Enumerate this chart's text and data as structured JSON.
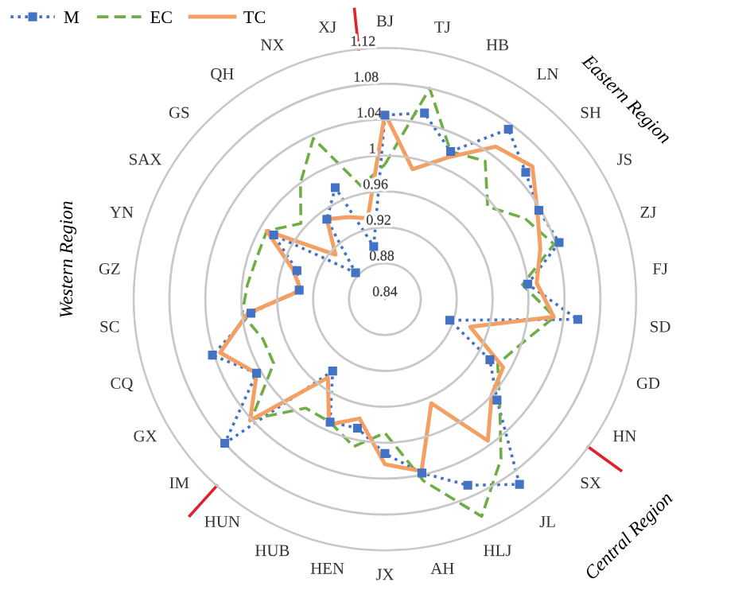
{
  "chart_data": {
    "type": "radar",
    "categories": [
      "BJ",
      "TJ",
      "HB",
      "LN",
      "SH",
      "JS",
      "ZJ",
      "FJ",
      "SD",
      "GD",
      "HN",
      "SX",
      "JL",
      "HLJ",
      "AH",
      "JX",
      "HEN",
      "HUB",
      "HUN",
      "IM",
      "GX",
      "CQ",
      "SC",
      "GZ",
      "YN",
      "SAX",
      "GS",
      "QH",
      "NX",
      "XJ"
    ],
    "series": [
      {
        "name": "M",
        "color": "#4472c4",
        "marker": "square",
        "line_style": "dotted",
        "values": [
          1.045,
          1.052,
          1.02,
          1.074,
          1.051,
          1.038,
          1.044,
          1.0,
          1.056,
          0.916,
          0.975,
          1.008,
          1.095,
          1.067,
          1.038,
          1.012,
          0.987,
          0.99,
          0.939,
          1.08,
          1.005,
          1.042,
          0.99,
          0.936,
          0.943,
          0.983,
          0.884,
          0.95,
          0.976,
          0.9
        ]
      },
      {
        "name": "EC",
        "color": "#70ad47",
        "marker": "none",
        "line_style": "dashed",
        "values": [
          0.99,
          1.08,
          1.02,
          1.03,
          0.994,
          1.02,
          1.038,
          0.994,
          1.03,
          1.0,
          0.985,
          1.012,
          1.06,
          1.105,
          1.047,
          0.989,
          1.008,
          0.99,
          0.99,
          1.04,
          0.983,
          0.983,
          1.0,
          0.994,
          0.99,
          0.992,
          0.966,
          1.0,
          1.036,
          0.969
        ]
      },
      {
        "name": "TC",
        "color": "#f4a064",
        "marker": "none",
        "line_style": "solid",
        "values": [
          1.047,
          0.988,
          1.013,
          1.05,
          1.061,
          1.036,
          1.022,
          1.01,
          1.029,
          0.94,
          0.992,
          1.0,
          1.035,
          0.967,
          1.036,
          1.024,
          0.976,
          0.993,
          0.948,
          1.042,
          1.005,
          1.033,
          0.994,
          0.934,
          0.948,
          0.992,
          0.914,
          0.95,
          0.94,
          0.932
        ]
      }
    ],
    "ylim": [
      0.84,
      1.12
    ],
    "yticks": [
      0.84,
      0.88,
      0.92,
      0.96,
      1,
      1.04,
      1.08,
      1.12
    ],
    "grid": "y",
    "legend": "top left",
    "annotations": [
      "Eastern Region",
      "Central Region",
      "Western Region"
    ]
  }
}
